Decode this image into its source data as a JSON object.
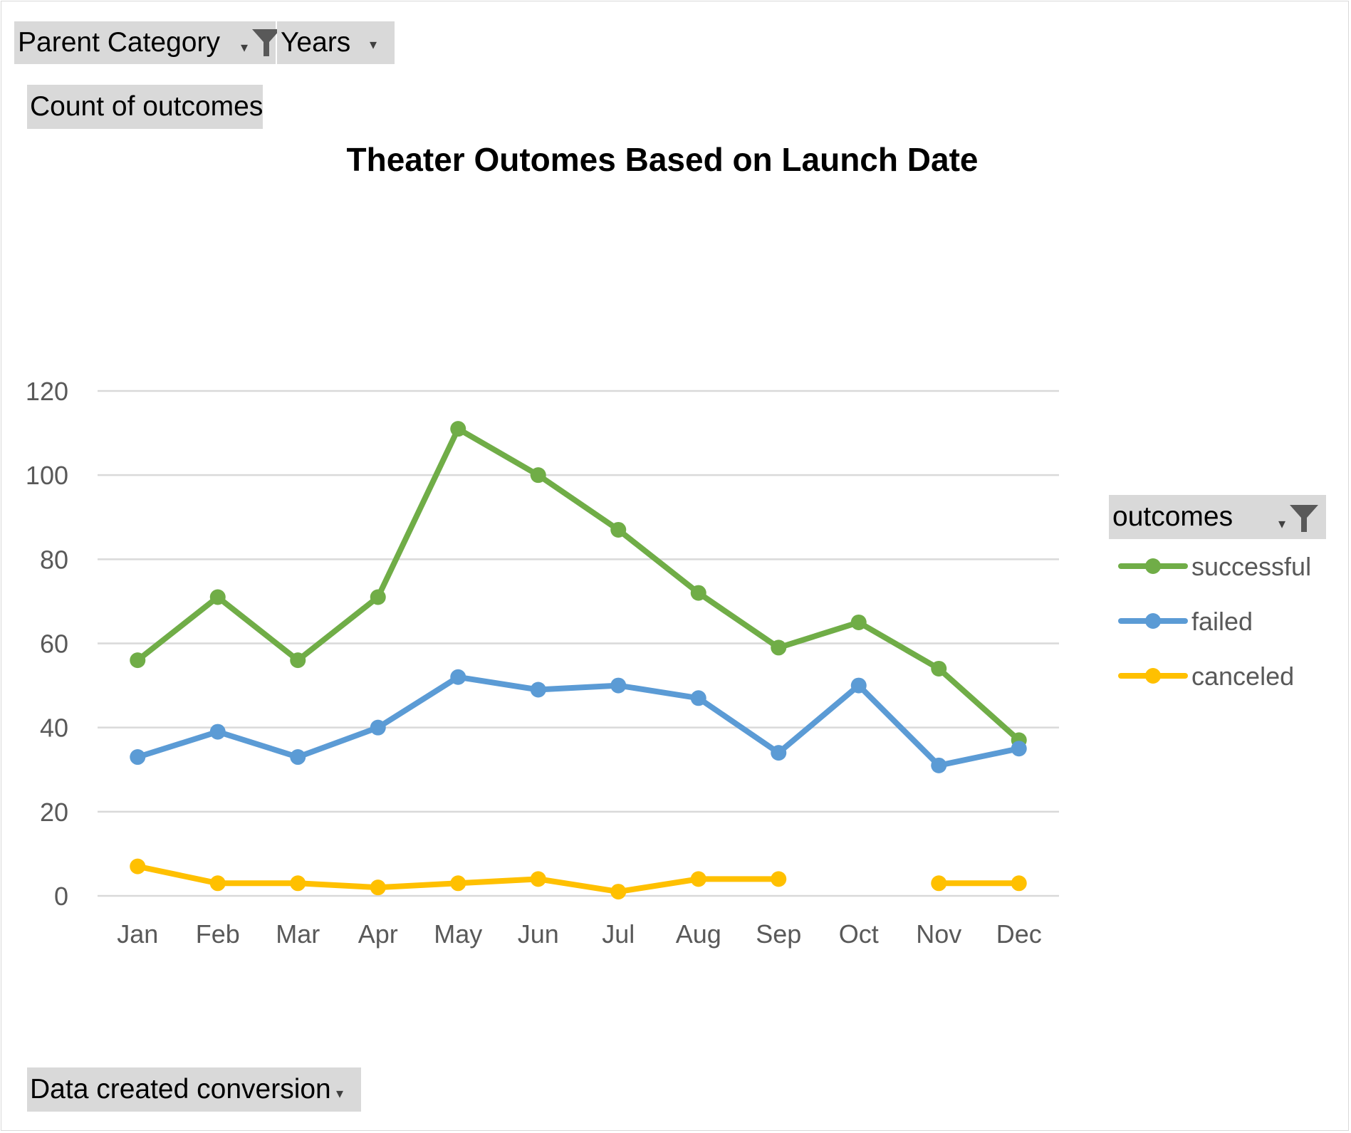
{
  "field_buttons": {
    "parent_category": "Parent Category",
    "years": "Years",
    "values": "Count of outcomes",
    "legend_field": "outcomes",
    "axis_field": "Data created conversion"
  },
  "icons": {
    "filter": "filter-funnel-icon",
    "dropdown": "dropdown-arrow-icon"
  },
  "chart_data": {
    "type": "line",
    "title": "Theater Outomes Based on Launch Date",
    "xlabel": "",
    "ylabel": "",
    "categories": [
      "Jan",
      "Feb",
      "Mar",
      "Apr",
      "May",
      "Jun",
      "Jul",
      "Aug",
      "Sep",
      "Oct",
      "Nov",
      "Dec"
    ],
    "ylim": [
      0,
      120
    ],
    "yticks": [
      0,
      20,
      40,
      60,
      80,
      100,
      120
    ],
    "grid": true,
    "legend_position": "right",
    "series": [
      {
        "name": "successful",
        "color": "#70ad47",
        "values": [
          56,
          71,
          56,
          71,
          111,
          100,
          87,
          72,
          59,
          65,
          54,
          37
        ]
      },
      {
        "name": "failed",
        "color": "#5b9bd5",
        "values": [
          33,
          39,
          33,
          40,
          52,
          49,
          50,
          47,
          34,
          50,
          31,
          35
        ]
      },
      {
        "name": "canceled",
        "color": "#ffc000",
        "values": [
          7,
          3,
          3,
          2,
          3,
          4,
          1,
          4,
          4,
          null,
          3,
          3
        ]
      }
    ]
  }
}
